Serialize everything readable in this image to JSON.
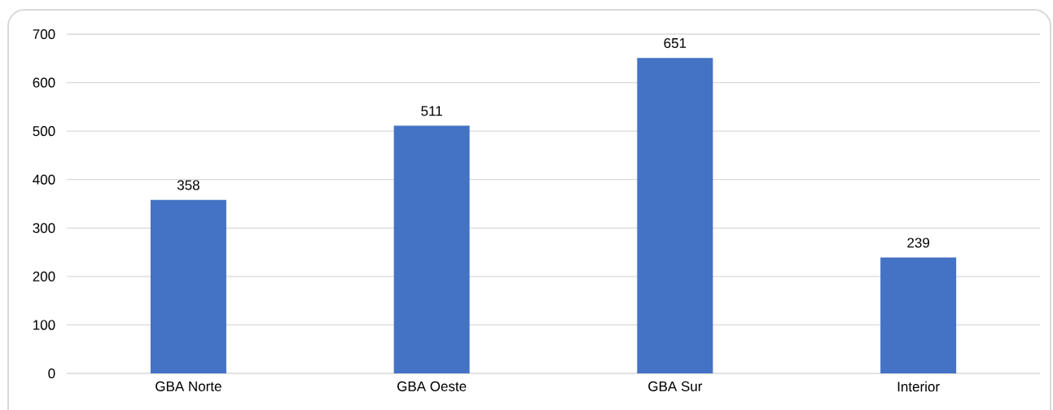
{
  "chart_data": {
    "type": "bar",
    "categories": [
      "GBA Norte",
      "GBA Oeste",
      "GBA Sur",
      "Interior"
    ],
    "values": [
      358,
      511,
      651,
      239
    ],
    "color": "#4472c4",
    "ylim": [
      0,
      700
    ],
    "yticks": [
      0,
      100,
      200,
      300,
      400,
      500,
      600,
      700
    ],
    "grid": "y",
    "data_labels": true
  }
}
